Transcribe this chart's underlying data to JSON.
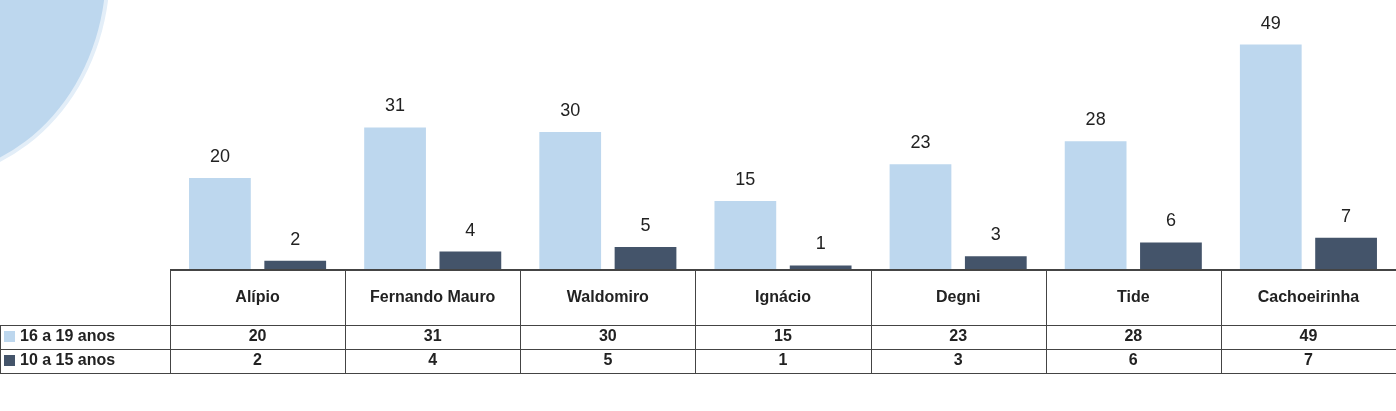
{
  "chart_data": {
    "type": "bar",
    "categories": [
      "Alípio",
      "Fernando Mauro",
      "Waldomiro",
      "Ignácio",
      "Degni",
      "Tide",
      "Cachoeirinha"
    ],
    "series": [
      {
        "name": "16 a 19 anos",
        "color": "#bdd7ee",
        "values": [
          20,
          31,
          30,
          15,
          23,
          28,
          49
        ],
        "value_labels": [
          "20",
          "31",
          "30",
          "15",
          "23",
          "28",
          "49"
        ]
      },
      {
        "name": "10 a 15 anos",
        "color": "#44546a",
        "values": [
          2,
          4,
          5,
          1,
          3,
          6,
          7
        ],
        "value_labels": [
          "2",
          "4",
          "5",
          "1",
          "3",
          "6",
          "7"
        ]
      }
    ],
    "annotations": [
      "20",
      "31",
      "30",
      "15",
      "23",
      "28",
      "49",
      "2",
      "4",
      "5",
      "1",
      "3",
      "6",
      "7"
    ],
    "legend": "bottom left"
  }
}
